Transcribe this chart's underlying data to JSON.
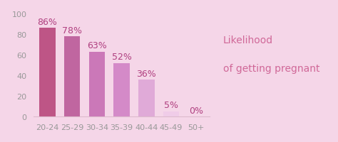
{
  "categories": [
    "20-24",
    "25-29",
    "30-34",
    "35-39",
    "40-44",
    "45-49",
    "50+"
  ],
  "values": [
    86,
    78,
    63,
    52,
    36,
    5,
    0
  ],
  "bar_colors": [
    "#be5586",
    "#c066a0",
    "#cb78b8",
    "#d48ac8",
    "#e0aad8",
    "#f0cce8",
    "#f8eef4"
  ],
  "label_colors": [
    "#b04080",
    "#b04080",
    "#b04080",
    "#b04080",
    "#b04080",
    "#b04080",
    "#b04080"
  ],
  "background_color": "#f5d6e8",
  "title_line1": "Likelihood",
  "title_line2": "of getting pregnant",
  "title_color": "#d06898",
  "ylim": [
    0,
    100
  ],
  "yticks": [
    0,
    20,
    40,
    60,
    80,
    100
  ],
  "title_fontsize": 10,
  "label_fontsize": 9,
  "tick_fontsize": 8,
  "figwidth": 4.74,
  "figheight": 2.01,
  "dpi": 100
}
